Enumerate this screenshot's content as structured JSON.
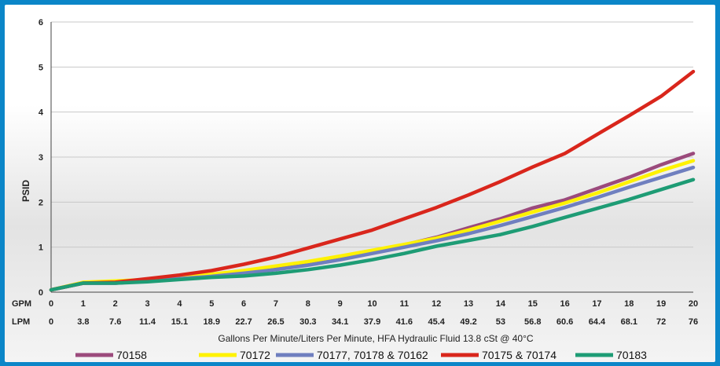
{
  "chart_data": {
    "type": "line",
    "ylabel": "PSID",
    "xlabel": "Gallons Per Minute/Liters Per Minute, HFA Hydraulic Fluid 13.8 cSt @ 40°C",
    "ylim": [
      0,
      6
    ],
    "yticks": [
      "0",
      "1",
      "2",
      "3",
      "4",
      "5",
      "6"
    ],
    "x_row1_label": "GPM",
    "x_row2_label": "LPM",
    "x": [
      0,
      1,
      2,
      3,
      4,
      5,
      6,
      7,
      8,
      9,
      10,
      11,
      12,
      13,
      14,
      15,
      16,
      17,
      18,
      19,
      20
    ],
    "gpm_labels": [
      "0",
      "1",
      "2",
      "3",
      "4",
      "5",
      "6",
      "7",
      "8",
      "9",
      "10",
      "11",
      "12",
      "13",
      "14",
      "15",
      "16",
      "17",
      "18",
      "19",
      "20"
    ],
    "lpm_labels": [
      "0",
      "3.8",
      "7.6",
      "11.4",
      "15.1",
      "18.9",
      "22.7",
      "26.5",
      "30.3",
      "34.1",
      "37.9",
      "41.6",
      "45.4",
      "49.2",
      "53",
      "56.8",
      "60.6",
      "64.4",
      "68.1",
      "72",
      "76"
    ],
    "grid": "horizontal",
    "legend_position": "bottom",
    "series": [
      {
        "name": "70158",
        "color": "#9b4a7c",
        "values": [
          0.05,
          0.2,
          0.2,
          0.25,
          0.32,
          0.38,
          0.45,
          0.55,
          0.65,
          0.76,
          0.9,
          1.05,
          1.22,
          1.43,
          1.63,
          1.87,
          2.05,
          2.3,
          2.55,
          2.83,
          3.08
        ]
      },
      {
        "name": "70172",
        "color": "#fff200",
        "values": [
          0.05,
          0.22,
          0.25,
          0.28,
          0.33,
          0.4,
          0.48,
          0.58,
          0.68,
          0.8,
          0.93,
          1.06,
          1.2,
          1.38,
          1.58,
          1.78,
          1.98,
          2.2,
          2.45,
          2.7,
          2.92
        ]
      },
      {
        "name": "70177, 70178 & 70162",
        "color": "#6f7fbf",
        "values": [
          0.05,
          0.2,
          0.2,
          0.25,
          0.3,
          0.35,
          0.42,
          0.5,
          0.6,
          0.72,
          0.86,
          1.0,
          1.14,
          1.3,
          1.48,
          1.68,
          1.88,
          2.1,
          2.33,
          2.55,
          2.77
        ]
      },
      {
        "name": "70175 & 70174",
        "color": "#d9261c",
        "values": [
          0.05,
          0.2,
          0.22,
          0.3,
          0.38,
          0.48,
          0.62,
          0.78,
          0.98,
          1.18,
          1.38,
          1.63,
          1.88,
          2.16,
          2.46,
          2.78,
          3.08,
          3.5,
          3.92,
          4.35,
          4.9
        ]
      },
      {
        "name": "70183",
        "color": "#1e9c75",
        "values": [
          0.05,
          0.2,
          0.2,
          0.23,
          0.28,
          0.33,
          0.36,
          0.42,
          0.5,
          0.6,
          0.72,
          0.86,
          1.02,
          1.15,
          1.28,
          1.46,
          1.66,
          1.86,
          2.06,
          2.28,
          2.5
        ]
      }
    ]
  }
}
